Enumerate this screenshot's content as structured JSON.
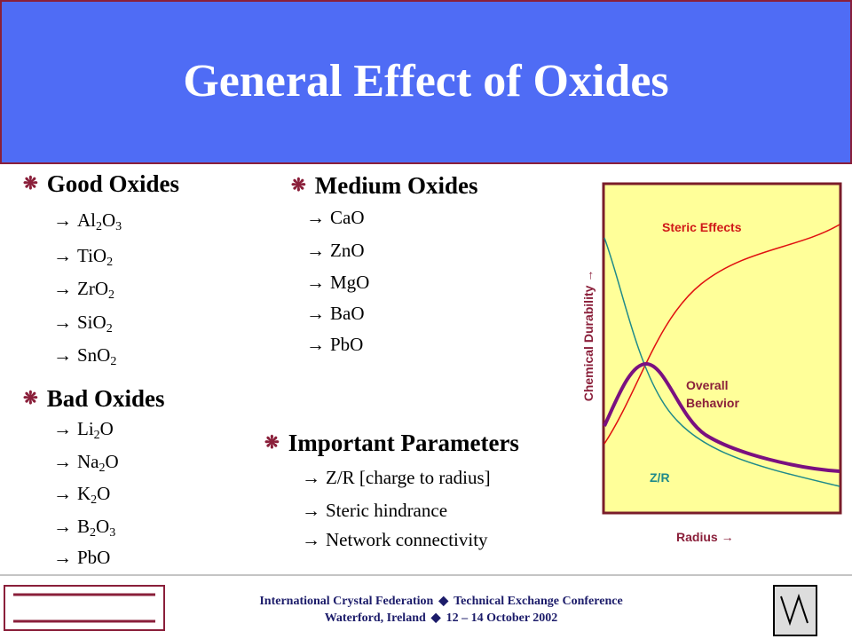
{
  "header": {
    "title": "General Effect of Oxides"
  },
  "sections": [
    {
      "heading": "Good Oxides",
      "items": [
        "Al2O3",
        "TiO2",
        "ZrO2",
        "SiO2",
        "SnO2"
      ]
    },
    {
      "heading": "Bad Oxides",
      "items": [
        "Li2O",
        "Na2O",
        "K2O",
        "B2O3",
        "PbO"
      ]
    },
    {
      "heading": "Medium Oxides",
      "items": [
        "CaO",
        "ZnO",
        "MgO",
        "BaO",
        "PbO"
      ]
    },
    {
      "heading": "Important Parameters",
      "items": [
        "Z/R [charge to radius]",
        "Steric hindrance",
        "Network connectivity"
      ]
    }
  ],
  "diagram": {
    "y_label": "Chemical Durability",
    "x_label": "Radius",
    "curves": [
      "Steric Effects",
      "Overall Behavior",
      "Z/R"
    ]
  },
  "footer": {
    "line1": [
      "International Crystal Federation",
      "Technical Exchange Conference"
    ],
    "line2": [
      "Waterford, Ireland",
      "12 – 14 October 2002"
    ]
  }
}
